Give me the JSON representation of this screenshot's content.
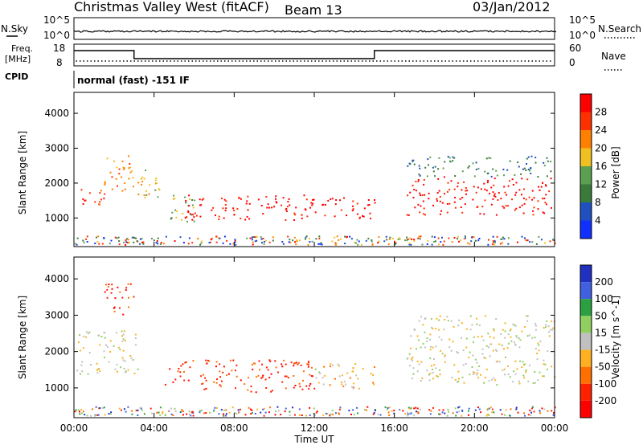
{
  "header": {
    "station": "Christmas Valley West (fitACF)",
    "beam": "Beam 13",
    "date": "03/Jan/2012"
  },
  "strip": {
    "nsky_label": "N.Sky",
    "nsearch_label": "N.Search",
    "nsky_ticks": [
      "10^5",
      "10^0"
    ],
    "nsearch_ticks": [
      "10^5",
      "10^0"
    ],
    "freq_label_1": "Freq.",
    "freq_label_2": "[MHz]",
    "freq_ticks": [
      "18",
      "8"
    ],
    "nave_label": "Nave",
    "nave_ticks": [
      "60",
      "0"
    ],
    "cpid_label": "CPID",
    "cpid_value": "normal (fast) -151 IF"
  },
  "chart_data": [
    {
      "type": "heatmap",
      "name": "power-panel",
      "ylabel": "Slant Range [km]",
      "yticks": [
        1000,
        2000,
        3000,
        4000
      ],
      "colorbar_label": "Power [dB]",
      "colorbar_ticks": [
        "4",
        "8",
        "12",
        "16",
        "20",
        "24",
        "28"
      ],
      "colors": [
        "#1030ff",
        "#2050c0",
        "#3a7a3a",
        "#5aa050",
        "#f0c020",
        "#ff8000",
        "#ff3000",
        "#ff0000"
      ],
      "scatter_bands": [
        {
          "x": [
            0.1,
            1.5
          ],
          "range": [
            1300,
            1900
          ],
          "level": 6
        },
        {
          "x": [
            1.5,
            3.0
          ],
          "range": [
            1700,
            2800
          ],
          "level": 5
        },
        {
          "x": [
            3.0,
            4.5
          ],
          "range": [
            1600,
            2400
          ],
          "level": 4
        },
        {
          "x": [
            4.5,
            6.0
          ],
          "range": [
            900,
            1700
          ],
          "level": 3
        },
        {
          "x": [
            5.5,
            12.0
          ],
          "range": [
            950,
            1700
          ],
          "level": 7
        },
        {
          "x": [
            12.0,
            15.0
          ],
          "range": [
            1000,
            1600
          ],
          "level": 7
        },
        {
          "x": [
            16.6,
            24.0
          ],
          "range": [
            1100,
            2200
          ],
          "level": 7
        },
        {
          "x": [
            16.6,
            24.0
          ],
          "range": [
            2200,
            2800
          ],
          "level": 2
        }
      ]
    },
    {
      "type": "heatmap",
      "name": "velocity-panel",
      "ylabel": "Slant Range [km]",
      "yticks": [
        1000,
        2000,
        3000,
        4000
      ],
      "colorbar_label": "Velocity [m s^-1]",
      "colorbar_ticks": [
        "200",
        "100",
        "50",
        "15",
        "-15",
        "-50",
        "-100",
        "-200"
      ],
      "colors": [
        "#2030c0",
        "#4060e0",
        "#2aa040",
        "#90d060",
        "#c0c0c0",
        "#ffb020",
        "#ff7000",
        "#ff2000",
        "#ff0000"
      ],
      "scatter_bands": [
        {
          "x": [
            0.1,
            3.2
          ],
          "range": [
            1400,
            2600
          ],
          "level": 4
        },
        {
          "x": [
            1.5,
            3.0
          ],
          "range": [
            3000,
            3900
          ],
          "level": 7
        },
        {
          "x": [
            4.5,
            12.0
          ],
          "range": [
            900,
            1800
          ],
          "level": 7
        },
        {
          "x": [
            12.0,
            15.0
          ],
          "range": [
            1000,
            1700
          ],
          "level": 5
        },
        {
          "x": [
            12.0,
            12.5
          ],
          "range": [
            1100,
            1700
          ],
          "level": 4
        },
        {
          "x": [
            16.6,
            24.0
          ],
          "range": [
            1100,
            2200
          ],
          "level": 4
        },
        {
          "x": [
            16.6,
            24.0
          ],
          "range": [
            2200,
            3000
          ],
          "level": 4
        }
      ]
    }
  ],
  "time_axis": {
    "xlabel": "Time UT",
    "xticks": [
      "00:00",
      "04:00",
      "08:00",
      "12:00",
      "16:00",
      "20:00",
      "00:00"
    ],
    "xlim": [
      0,
      24
    ]
  },
  "range_axis": {
    "ylim": [
      180,
      4600
    ]
  }
}
